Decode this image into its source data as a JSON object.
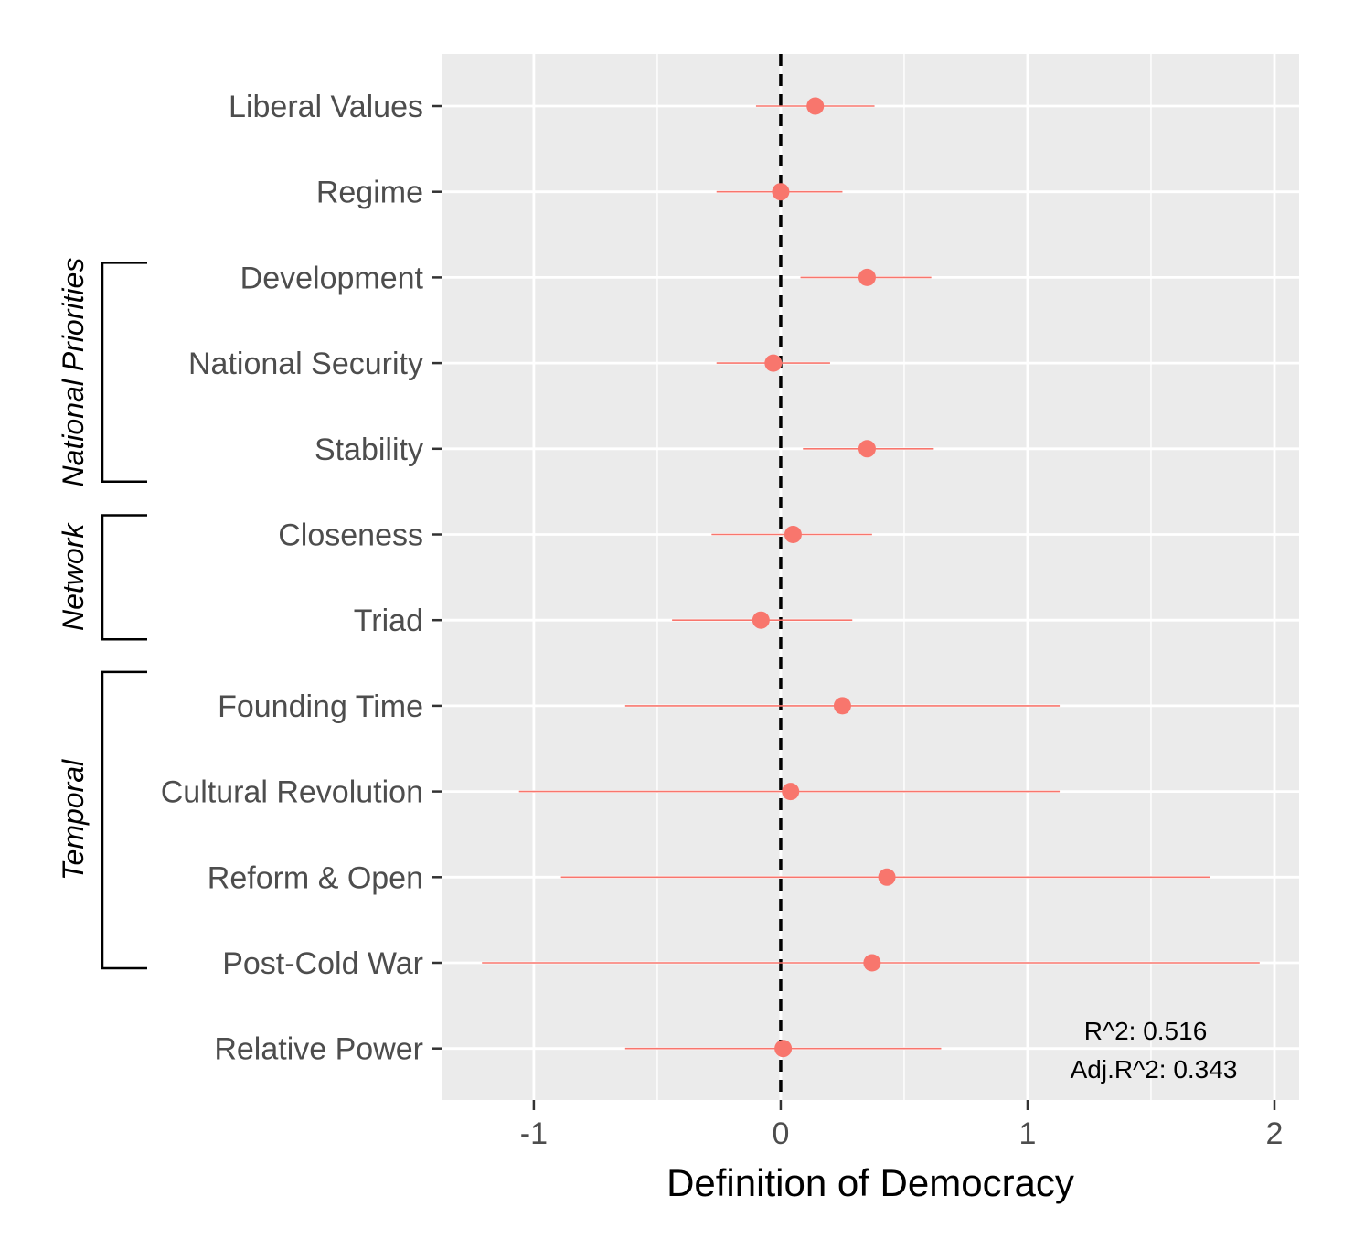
{
  "chart_data": {
    "type": "scatter",
    "subtype": "coefficient-plot",
    "xlabel": "Definition of Democracy",
    "xlim": [
      -1.37,
      2.1
    ],
    "xticks": [
      -1,
      0,
      1,
      2
    ],
    "xtick_labels": [
      "-1",
      "0",
      "1",
      "2"
    ],
    "reference_line": {
      "x": 0,
      "style": "dashed"
    },
    "grid": true,
    "point_color": "#F8766D",
    "panel_background": "#EBEBEB",
    "rows": [
      {
        "label": "Liberal Values",
        "estimate": 0.14,
        "low": -0.1,
        "high": 0.38
      },
      {
        "label": "Regime",
        "estimate": 0.0,
        "low": -0.26,
        "high": 0.25
      },
      {
        "label": "Development",
        "estimate": 0.35,
        "low": 0.08,
        "high": 0.61
      },
      {
        "label": "National Security",
        "estimate": -0.03,
        "low": -0.26,
        "high": 0.2
      },
      {
        "label": "Stability",
        "estimate": 0.35,
        "low": 0.09,
        "high": 0.62
      },
      {
        "label": "Closeness",
        "estimate": 0.05,
        "low": -0.28,
        "high": 0.37
      },
      {
        "label": "Triad",
        "estimate": -0.08,
        "low": -0.44,
        "high": 0.29
      },
      {
        "label": "Founding Time",
        "estimate": 0.25,
        "low": -0.63,
        "high": 1.13
      },
      {
        "label": "Cultural Revolution",
        "estimate": 0.04,
        "low": -1.06,
        "high": 1.13
      },
      {
        "label": "Reform & Open",
        "estimate": 0.43,
        "low": -0.89,
        "high": 1.74
      },
      {
        "label": "Post-Cold War",
        "estimate": 0.37,
        "low": -1.21,
        "high": 1.94
      },
      {
        "label": "Relative Power",
        "estimate": 0.01,
        "low": -0.63,
        "high": 0.65
      }
    ],
    "groups": [
      {
        "label": "National Priorities",
        "rows": [
          "Development",
          "National Security",
          "Stability"
        ]
      },
      {
        "label": "Network",
        "rows": [
          "Closeness",
          "Triad"
        ]
      },
      {
        "label": "Temporal",
        "rows": [
          "Founding Time",
          "Cultural Revolution",
          "Reform & Open",
          "Post-Cold War"
        ]
      }
    ],
    "annotations": {
      "r2": "R^2: 0.516",
      "adj_r2": "Adj.R^2: 0.343"
    }
  }
}
